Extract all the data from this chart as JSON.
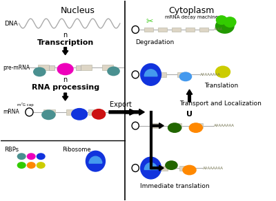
{
  "bg_color": "#ffffff",
  "nucleus_label": "Nucleus",
  "cytoplasm_label": "Cytoplasm",
  "dna_label": "DNA",
  "pre_mrna_label": "pre-mRNA",
  "mrna_label": "mRNA",
  "rbps_label": "RBPs",
  "ribosome_label": "Ribosome",
  "transcription_label": "Transcription",
  "rna_processing_label": "RNA processing",
  "export_label": "Export",
  "degradation_label": "Degradation",
  "translation_label": "Translation",
  "transport_label": "Transport and Localization",
  "immediate_label": "Immediate translation",
  "mrna_decay_label": "mRNA decay machinery",
  "m7g_label": "m⁷G cap",
  "DIV": 193,
  "colors": {
    "teal": "#4a9090",
    "magenta": "#ee00bb",
    "blue": "#1133dd",
    "light_blue": "#4499ee",
    "red": "#cc1111",
    "bright_green": "#33cc00",
    "dark_green": "#226600",
    "orange": "#ff8800",
    "yellow": "#cccc00",
    "gray_box": "#ddd5c5",
    "line_gray": "#aaaaaa",
    "scissors_green": "#44cc22",
    "decay_green": "#229900"
  }
}
